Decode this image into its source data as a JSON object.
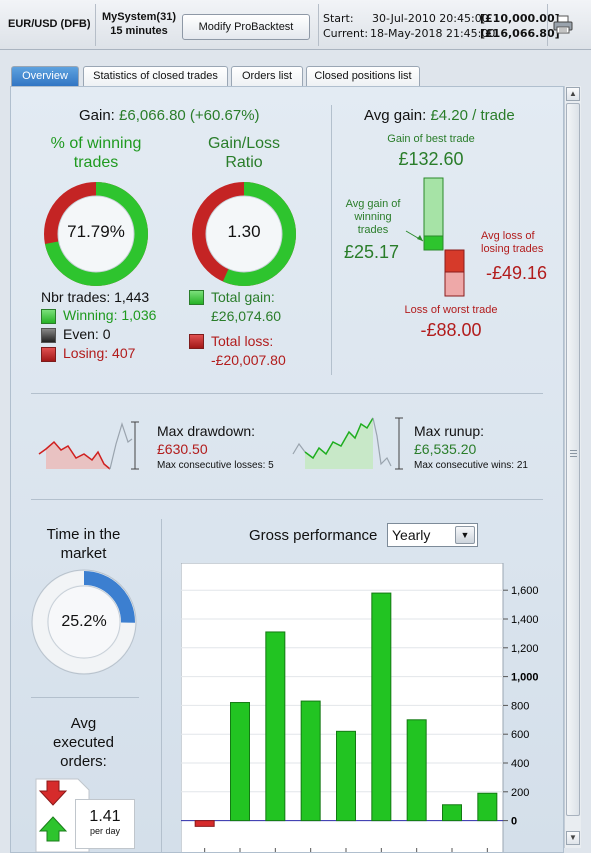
{
  "header": {
    "instrument": "EUR/USD (DFB)",
    "system_name": "MySystem(31)",
    "timeframe": "15 minutes",
    "modify_button": "Modify ProBacktest",
    "start_label": "Start:",
    "start_value": "30-Jul-2010 20:45:00",
    "start_amount": "[£10,000.00]",
    "current_label": "Current:",
    "current_value": "18-May-2018 21:45:00",
    "current_amount": "[£16,066.80]"
  },
  "tabs": [
    {
      "label": "Overview",
      "active": true
    },
    {
      "label": "Statistics of closed trades",
      "active": false
    },
    {
      "label": "Orders list",
      "active": false
    },
    {
      "label": "Closed positions list",
      "active": false
    }
  ],
  "gain": {
    "label": "Gain:",
    "value": "£6,066.80 (+60.67%)"
  },
  "winning_pct": {
    "title_line1": "% of winning",
    "title_line2": "trades",
    "value": "71.79%",
    "fraction": 0.7179
  },
  "gain_loss_ratio": {
    "title_line1": "Gain/Loss",
    "title_line2": "Ratio",
    "value": "1.30",
    "gain_fraction": 0.5657
  },
  "trade_counts": {
    "nbr_label": "Nbr trades:",
    "nbr_value": "1,443",
    "winning_label": "Winning:",
    "winning_value": "1,036",
    "even_label": "Even:",
    "even_value": "0",
    "losing_label": "Losing:",
    "losing_value": "407"
  },
  "totals": {
    "total_gain_label": "Total gain:",
    "total_gain_value": "£26,074.60",
    "total_loss_label": "Total loss:",
    "total_loss_value": "-£20,007.80"
  },
  "avg_gain": {
    "label": "Avg gain:",
    "value": "£4.20 / trade",
    "best_label": "Gain of best trade",
    "best_value": "£132.60",
    "avg_win_line1": "Avg gain of",
    "avg_win_line2": "winning",
    "avg_win_line3": "trades",
    "avg_win_value": "£25.17",
    "avg_loss_line1": "Avg loss of",
    "avg_loss_line2": "losing trades",
    "avg_loss_value": "-£49.16",
    "worst_label": "Loss of worst trade",
    "worst_value": "-£88.00"
  },
  "drawdown": {
    "label": "Max drawdown:",
    "value": "£630.50",
    "consec_label": "Max consecutive losses:",
    "consec_value": "5"
  },
  "runup": {
    "label": "Max runup:",
    "value": "£6,535.20",
    "consec_label": "Max consecutive wins:",
    "consec_value": "21"
  },
  "time_in_market": {
    "title_line1": "Time in the",
    "title_line2": "market",
    "value": "25.2%",
    "fraction": 0.252
  },
  "avg_orders": {
    "title_line1": "Avg",
    "title_line2": "executed",
    "title_line3": "orders:",
    "value": "1.41",
    "unit": "per day"
  },
  "gross_performance": {
    "label": "Gross performance",
    "period_selected": "Yearly"
  },
  "colors": {
    "gain_green": "#1f9a1f",
    "loss_red": "#b21c1c",
    "accent_blue": "#2f73c2",
    "bar_green": "#22c422"
  },
  "chart_data": {
    "type": "bar",
    "title": "Gross performance",
    "values": [
      -40,
      820,
      1310,
      830,
      620,
      1580,
      700,
      110,
      190
    ],
    "ylim": [
      -100,
      1650
    ],
    "y_ticks": [
      0,
      200,
      400,
      600,
      800,
      1000,
      1200,
      1400,
      1600
    ],
    "y_tick_labels": [
      "0",
      "200",
      "400",
      "600",
      "800",
      "1,000",
      "1,200",
      "1,400",
      "1,600"
    ],
    "grid": true
  }
}
